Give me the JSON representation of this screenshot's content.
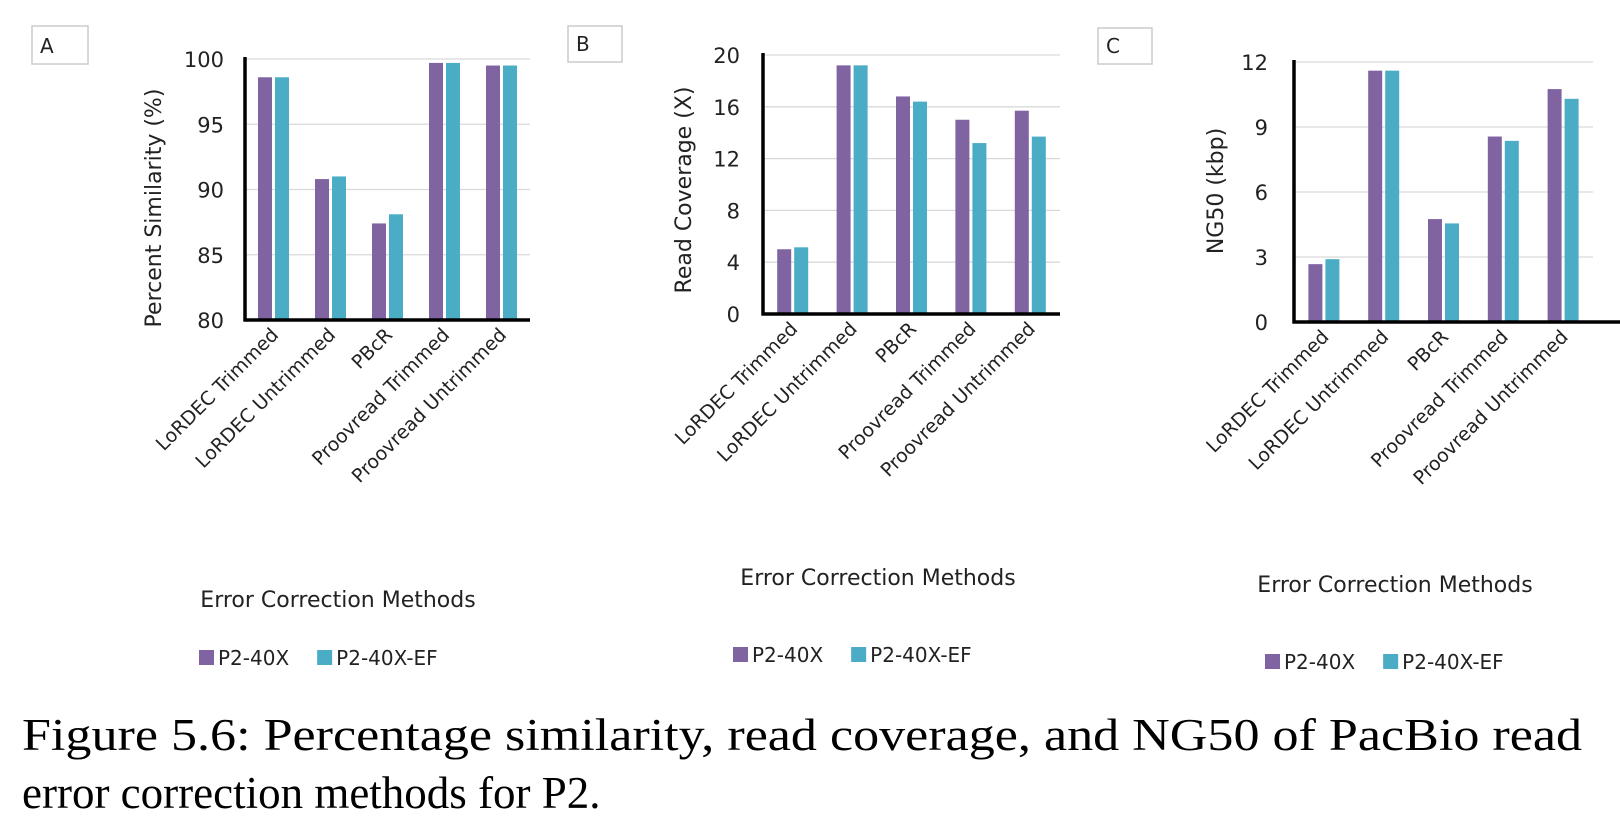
{
  "colors": {
    "P2-40X": "#8064A2",
    "P2-40X-EF": "#4BACC6"
  },
  "caption": {
    "line1": "Figure 5.6: Percentage similarity, read coverage, and NG50 of PacBio read",
    "line2": "error correction methods for P2."
  },
  "chart_data": [
    {
      "panel": "A",
      "type": "bar",
      "categories": [
        "LoRDEC Trimmed",
        "LoRDEC Untrimmed",
        "PBcR",
        "Proovread Trimmed",
        "Proovread Untrimmed"
      ],
      "series": [
        {
          "name": "P2-40X",
          "values": [
            98.6,
            90.8,
            87.4,
            99.7,
            99.5
          ]
        },
        {
          "name": "P2-40X-EF",
          "values": [
            98.6,
            91.0,
            88.1,
            99.7,
            99.5
          ]
        }
      ],
      "xlabel": "Error Correction Methods",
      "ylabel": "Percent Similarity (%)",
      "ylim": [
        80,
        100
      ],
      "yticks": [
        "80",
        "85",
        "90",
        "95",
        "100"
      ],
      "grid": true,
      "legend": "bottom"
    },
    {
      "panel": "B",
      "type": "bar",
      "categories": [
        "LoRDEC Trimmed",
        "LoRDEC Untrimmed",
        "PBcR",
        "Proovread Trimmed",
        "Proovread Untrimmed"
      ],
      "series": [
        {
          "name": "P2-40X",
          "values": [
            5.0,
            19.2,
            16.8,
            15.0,
            15.7
          ]
        },
        {
          "name": "P2-40X-EF",
          "values": [
            5.15,
            19.2,
            16.4,
            13.2,
            13.7
          ]
        }
      ],
      "xlabel": "Error Correction Methods",
      "ylabel": "Read Coverage (X)",
      "ylim": [
        0,
        20
      ],
      "yticks": [
        "0",
        "4",
        "8",
        "12",
        "16",
        "20"
      ],
      "grid": true,
      "legend": "bottom"
    },
    {
      "panel": "C",
      "type": "bar",
      "categories": [
        "LoRDEC Trimmed",
        "LoRDEC Untrimmed",
        "PBcR",
        "Proovread Trimmed",
        "Proovread Untrimmed"
      ],
      "series": [
        {
          "name": "P2-40X",
          "values": [
            2.67,
            11.6,
            4.75,
            8.56,
            10.75
          ]
        },
        {
          "name": "P2-40X-EF",
          "values": [
            2.9,
            11.6,
            4.55,
            8.36,
            10.3
          ]
        }
      ],
      "xlabel": "Error Correction Methods",
      "ylabel": "NG50 (kbp)",
      "ylim": [
        0,
        12
      ],
      "yticks": [
        "0",
        "3",
        "6",
        "9",
        "12"
      ],
      "grid": true,
      "legend": "bottom"
    }
  ]
}
